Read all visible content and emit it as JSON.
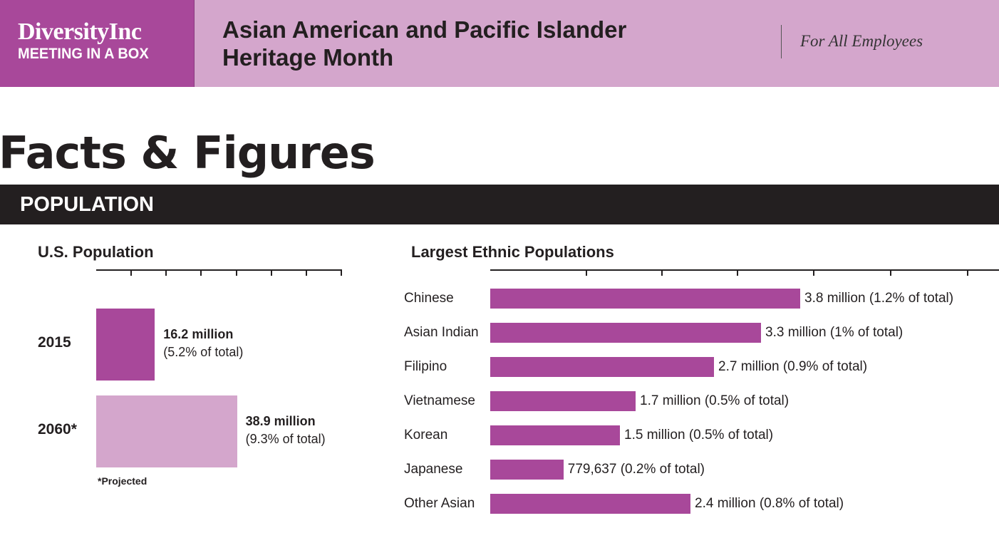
{
  "header": {
    "logo_line1": "DiversityInc",
    "logo_line2": "MEETING IN A BOX",
    "title_line1": "Asian American and Pacific Islander",
    "title_line2": "Heritage Month",
    "audience": "For All Employees"
  },
  "page_title": "Facts & Figures",
  "section": "POPULATION",
  "colors": {
    "primary": "#a8489a",
    "light": "#d4a6cc",
    "dark": "#231f20"
  },
  "chart_data": [
    {
      "type": "bar",
      "title": "U.S. Population",
      "orientation": "horizontal",
      "xlim": [
        0,
        70
      ],
      "tick_step": 10,
      "categories": [
        "2015",
        "2060*"
      ],
      "values": [
        16.2,
        38.9
      ],
      "units": "million",
      "value_labels": [
        "16.2 million",
        "38.9 million"
      ],
      "share_labels": [
        "(5.2% of total)",
        "(9.3% of total)"
      ],
      "footnote": "*Projected"
    },
    {
      "type": "bar",
      "title": "Largest Ethnic Populations",
      "orientation": "horizontal",
      "units": "million",
      "categories": [
        "Chinese",
        "Asian Indian",
        "Filipino",
        "Vietnamese",
        "Korean",
        "Japanese",
        "Other Asian"
      ],
      "values": [
        3.8,
        3.3,
        2.7,
        1.7,
        1.5,
        0.779637,
        2.4
      ],
      "value_labels": [
        "3.8 million (1.2% of total)",
        "3.3 million (1% of total)",
        "2.7 million (0.9% of total)",
        "1.7 million (0.5% of total)",
        "1.5 million (0.5% of total)",
        "779,637 (0.2% of total)",
        "2.4 million (0.8% of total)"
      ]
    }
  ]
}
